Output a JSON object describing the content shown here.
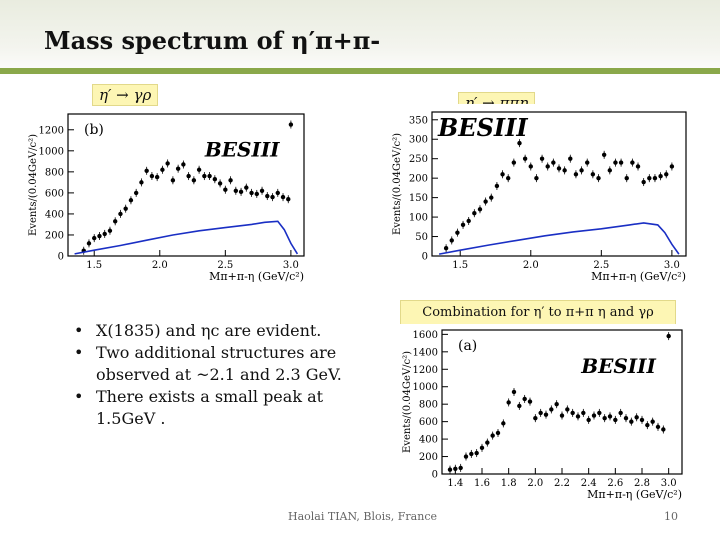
{
  "title": "Mass spectrum of η′π+π-",
  "channel_labels": [
    "η′ → γρ",
    "η′ → ππη"
  ],
  "combination_label": "Combination for η′ to π+π η and γρ",
  "bullets": [
    "X(1835) and ηc are evident.",
    "Two additional structures are observed at ~2.1 and 2.3 GeV.",
    "There exists a small peak at 1.5GeV ."
  ],
  "footer": "Haolai TIAN, Blois, France",
  "page_number": "10",
  "colors": {
    "accent_bar": "#8aa84a",
    "label_bg": "#fdf6b4",
    "fit_line": "#1a2fc4",
    "points": "#000000"
  },
  "chart_data": [
    {
      "type": "scatter",
      "panel_label": "(b)",
      "experiment_label": "BESIII",
      "xlabel": "Mπ+π-η (GeV/c²)",
      "ylabel": "Events/(0.04GeV/c²)",
      "xlim": [
        1.3,
        3.1
      ],
      "ylim": [
        0,
        1350
      ],
      "xticks": [
        1.5,
        2.0,
        2.5,
        3.0
      ],
      "xtick_labels": [
        "1.5",
        "2.0",
        "2.5",
        "3.0"
      ],
      "yticks": [
        0,
        200,
        400,
        600,
        800,
        1000,
        1200
      ],
      "ytick_labels": [
        "0",
        "200",
        "400",
        "600",
        "800",
        "1000",
        "1200"
      ],
      "series": [
        {
          "kind": "data",
          "x": [
            1.42,
            1.46,
            1.5,
            1.54,
            1.58,
            1.62,
            1.66,
            1.7,
            1.74,
            1.78,
            1.82,
            1.86,
            1.9,
            1.94,
            1.98,
            2.02,
            2.06,
            2.1,
            2.14,
            2.18,
            2.22,
            2.26,
            2.3,
            2.34,
            2.38,
            2.42,
            2.46,
            2.5,
            2.54,
            2.58,
            2.62,
            2.66,
            2.7,
            2.74,
            2.78,
            2.82,
            2.86,
            2.9,
            2.94,
            2.98,
            3.0
          ],
          "y": [
            50,
            120,
            170,
            190,
            210,
            240,
            330,
            400,
            450,
            530,
            600,
            700,
            810,
            760,
            750,
            820,
            880,
            720,
            830,
            870,
            760,
            720,
            820,
            760,
            760,
            730,
            690,
            630,
            720,
            620,
            610,
            650,
            600,
            590,
            620,
            570,
            560,
            600,
            560,
            540,
            1250
          ]
        },
        {
          "kind": "fit",
          "x": [
            1.35,
            1.5,
            1.7,
            1.9,
            2.1,
            2.3,
            2.5,
            2.7,
            2.8,
            2.9,
            2.95,
            3.0,
            3.05
          ],
          "y": [
            20,
            55,
            100,
            150,
            200,
            240,
            270,
            300,
            320,
            330,
            250,
            120,
            20
          ]
        }
      ]
    },
    {
      "type": "scatter",
      "experiment_label": "BESIII",
      "xlabel": "Mπ+π-η (GeV/c²)",
      "ylabel": "Events/(0.04GeV/c²)",
      "xlim": [
        1.3,
        3.1
      ],
      "ylim": [
        0,
        370
      ],
      "xticks": [
        1.5,
        2.0,
        2.5,
        3.0
      ],
      "xtick_labels": [
        "1.5",
        "2.0",
        "2.5",
        "3.0"
      ],
      "yticks": [
        0,
        50,
        100,
        150,
        200,
        250,
        300,
        350
      ],
      "ytick_labels": [
        "0",
        "50",
        "100",
        "150",
        "200",
        "250",
        "300",
        "350"
      ],
      "series": [
        {
          "kind": "data",
          "x": [
            1.4,
            1.44,
            1.48,
            1.52,
            1.56,
            1.6,
            1.64,
            1.68,
            1.72,
            1.76,
            1.8,
            1.84,
            1.88,
            1.92,
            1.96,
            2.0,
            2.04,
            2.08,
            2.12,
            2.16,
            2.2,
            2.24,
            2.28,
            2.32,
            2.36,
            2.4,
            2.44,
            2.48,
            2.52,
            2.56,
            2.6,
            2.64,
            2.68,
            2.72,
            2.76,
            2.8,
            2.84,
            2.88,
            2.92,
            2.96,
            3.0
          ],
          "y": [
            20,
            40,
            60,
            80,
            90,
            110,
            120,
            140,
            150,
            180,
            210,
            200,
            240,
            290,
            250,
            230,
            200,
            250,
            230,
            240,
            225,
            220,
            250,
            210,
            220,
            240,
            210,
            200,
            260,
            220,
            240,
            240,
            200,
            240,
            230,
            190,
            200,
            200,
            205,
            210,
            230
          ]
        },
        {
          "kind": "fit",
          "x": [
            1.35,
            1.5,
            1.7,
            1.9,
            2.1,
            2.3,
            2.5,
            2.7,
            2.8,
            2.9,
            2.95,
            3.0,
            3.05
          ],
          "y": [
            5,
            15,
            28,
            40,
            52,
            62,
            70,
            80,
            85,
            80,
            60,
            30,
            5
          ]
        }
      ]
    },
    {
      "type": "scatter",
      "panel_label": "(a)",
      "experiment_label": "BESIII",
      "xlabel": "Mπ+π-η (GeV/c²)",
      "ylabel": "Events/(0.04GeV/c²)",
      "xlim": [
        1.3,
        3.1
      ],
      "ylim": [
        0,
        1650
      ],
      "xticks": [
        1.4,
        1.6,
        1.8,
        2.0,
        2.2,
        2.4,
        2.6,
        2.8,
        3.0
      ],
      "xtick_labels": [
        "1.4",
        "1.6",
        "1.8",
        "2.0",
        "2.2",
        "2.4",
        "2.6",
        "2.8",
        "3.0"
      ],
      "yticks": [
        0,
        200,
        400,
        600,
        800,
        1000,
        1200,
        1400,
        1600
      ],
      "ytick_labels": [
        "0",
        "200",
        "400",
        "600",
        "800",
        "1000",
        "1200",
        "1400",
        "1600"
      ],
      "series": [
        {
          "kind": "data",
          "x": [
            1.36,
            1.4,
            1.44,
            1.48,
            1.52,
            1.56,
            1.6,
            1.64,
            1.68,
            1.72,
            1.76,
            1.8,
            1.84,
            1.88,
            1.92,
            1.96,
            2.0,
            2.04,
            2.08,
            2.12,
            2.16,
            2.2,
            2.24,
            2.28,
            2.32,
            2.36,
            2.4,
            2.44,
            2.48,
            2.52,
            2.56,
            2.6,
            2.64,
            2.68,
            2.72,
            2.76,
            2.8,
            2.84,
            2.88,
            2.92,
            2.96,
            3.0
          ],
          "y": [
            50,
            60,
            70,
            200,
            230,
            240,
            300,
            360,
            440,
            470,
            580,
            820,
            940,
            780,
            860,
            830,
            640,
            700,
            680,
            740,
            800,
            670,
            740,
            700,
            660,
            700,
            620,
            670,
            700,
            640,
            660,
            620,
            700,
            640,
            600,
            650,
            620,
            560,
            600,
            540,
            510,
            1580
          ]
        }
      ]
    }
  ]
}
